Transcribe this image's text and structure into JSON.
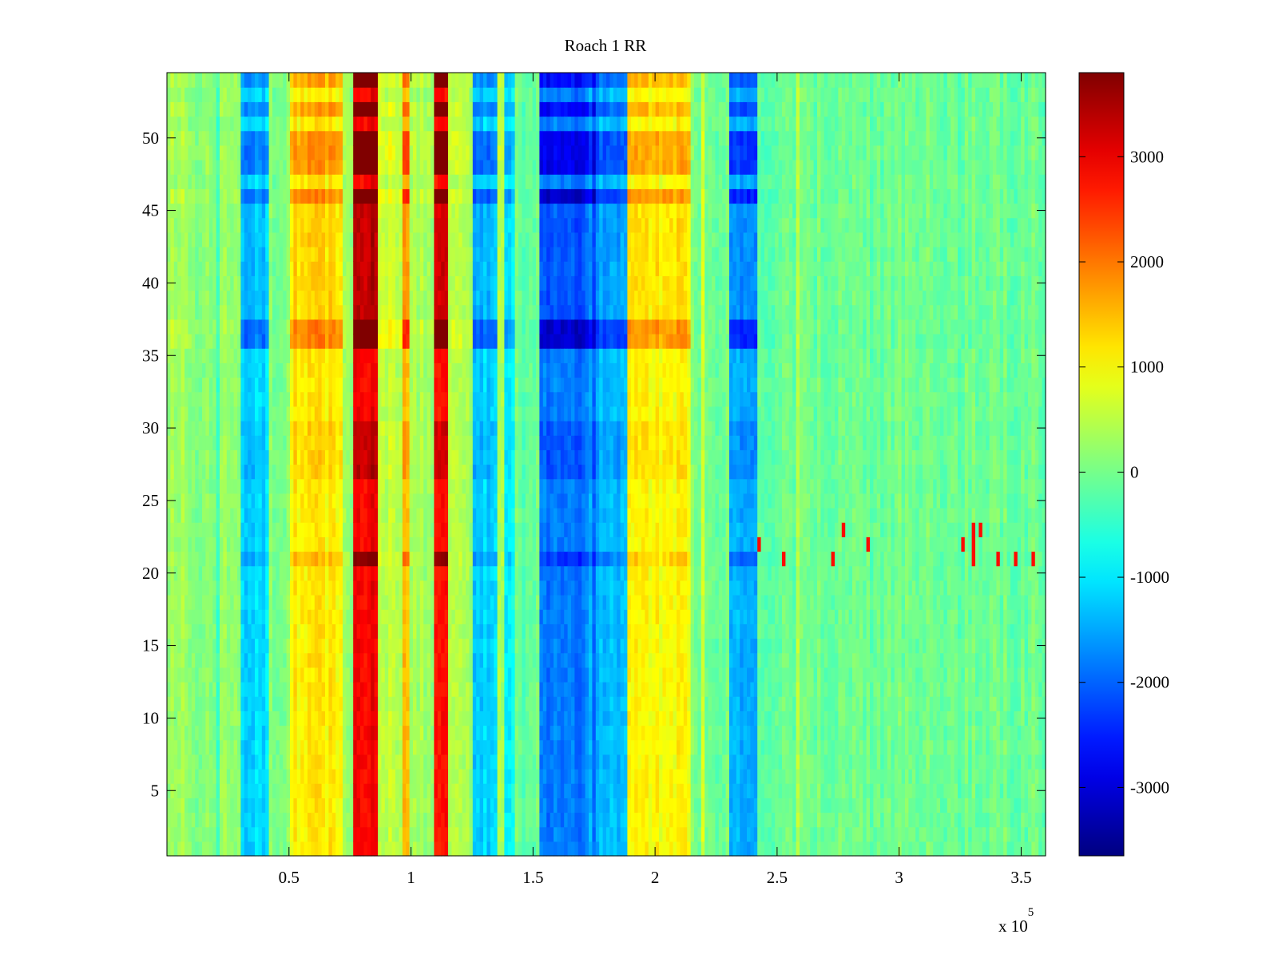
{
  "chart_data": {
    "type": "heatmap",
    "title": "Roach 1 RR",
    "xlabel": "",
    "ylabel": "",
    "x_exponent_label": "x 10",
    "x_exponent_power": "5",
    "xlim": [
      0,
      3.6
    ],
    "ylim": [
      0.5,
      54.5
    ],
    "xticks": [
      0.5,
      1,
      1.5,
      2,
      2.5,
      3,
      3.5
    ],
    "xtick_labels": [
      "0.5",
      "1",
      "1.5",
      "2",
      "2.5",
      "3",
      "3.5"
    ],
    "yticks": [
      5,
      10,
      15,
      20,
      25,
      30,
      35,
      40,
      45,
      50
    ],
    "ytick_labels": [
      "5",
      "10",
      "15",
      "20",
      "25",
      "30",
      "35",
      "40",
      "45",
      "50"
    ],
    "colorbar": {
      "colormap": "jet",
      "clim": [
        -3650,
        3800
      ],
      "ticks": [
        -3000,
        -2000,
        -1000,
        0,
        1000,
        2000,
        3000
      ],
      "tick_labels": [
        "-3000",
        "-2000",
        "-1000",
        "0",
        "1000",
        "2000",
        "3000"
      ]
    },
    "grid": false,
    "rows": 54,
    "column_bands": [
      {
        "x": [
          0.0,
          0.1
        ],
        "value": 250
      },
      {
        "x": [
          0.1,
          0.3
        ],
        "value": 150
      },
      {
        "x": [
          0.3,
          0.42
        ],
        "value": -1100
      },
      {
        "x": [
          0.42,
          0.5
        ],
        "value": 50
      },
      {
        "x": [
          0.5,
          0.72
        ],
        "value": 1100
      },
      {
        "x": [
          0.72,
          0.76
        ],
        "value": 300
      },
      {
        "x": [
          0.76,
          0.86
        ],
        "value": 2900
      },
      {
        "x": [
          0.86,
          0.96
        ],
        "value": 500
      },
      {
        "x": [
          0.96,
          1.0
        ],
        "value": 1600
      },
      {
        "x": [
          1.0,
          1.1
        ],
        "value": 300
      },
      {
        "x": [
          1.1,
          1.15
        ],
        "value": 2800
      },
      {
        "x": [
          1.15,
          1.25
        ],
        "value": 350
      },
      {
        "x": [
          1.25,
          1.35
        ],
        "value": -1200
      },
      {
        "x": [
          1.35,
          1.38
        ],
        "value": 300
      },
      {
        "x": [
          1.38,
          1.43
        ],
        "value": -900
      },
      {
        "x": [
          1.43,
          1.53
        ],
        "value": -100
      },
      {
        "x": [
          1.53,
          1.75
        ],
        "value": -1800
      },
      {
        "x": [
          1.75,
          1.88
        ],
        "value": -1300
      },
      {
        "x": [
          1.88,
          2.15
        ],
        "value": 1000
      },
      {
        "x": [
          2.15,
          2.31
        ],
        "value": 0
      },
      {
        "x": [
          2.31,
          2.42
        ],
        "value": -1500
      },
      {
        "x": [
          2.42,
          2.5
        ],
        "value": -150
      },
      {
        "x": [
          2.5,
          3.6
        ],
        "value": -50
      }
    ],
    "row_bands": [
      {
        "y": [
          35.5,
          37.5
        ],
        "scale": 1.7
      },
      {
        "y": [
          45.5,
          46.5
        ],
        "scale": 1.7
      },
      {
        "y": [
          47.5,
          50.5
        ],
        "scale": 1.6
      },
      {
        "y": [
          51.5,
          52.5
        ],
        "scale": 1.5
      },
      {
        "y": [
          53.5,
          54.5
        ],
        "scale": 1.45
      },
      {
        "y": [
          20.5,
          21.5
        ],
        "scale": 1.3
      },
      {
        "y": [
          37.5,
          46.5
        ],
        "scale": 1.15
      },
      {
        "y": [
          26.5,
          30.5
        ],
        "scale": 1.15
      }
    ],
    "row_anomaly": {
      "y": [
        20.5,
        23.5
      ],
      "x_range": [
        2.4,
        3.6
      ],
      "value": 2800
    }
  }
}
